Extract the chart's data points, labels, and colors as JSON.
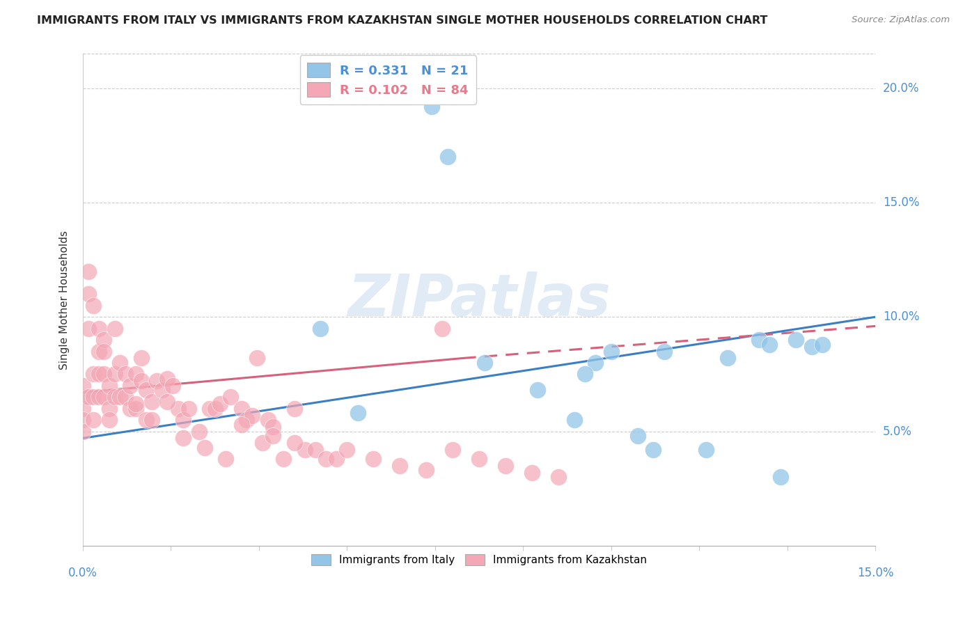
{
  "title": "IMMIGRANTS FROM ITALY VS IMMIGRANTS FROM KAZAKHSTAN SINGLE MOTHER HOUSEHOLDS CORRELATION CHART",
  "source": "Source: ZipAtlas.com",
  "ylabel": "Single Mother Households",
  "xlim": [
    0.0,
    0.15
  ],
  "ylim": [
    0.0,
    0.215
  ],
  "yticks": [
    0.05,
    0.1,
    0.15,
    0.2
  ],
  "ytick_labels": [
    "5.0%",
    "10.0%",
    "15.0%",
    "20.0%"
  ],
  "italy_color": "#92C5E8",
  "italy_edge": "#6aaed6",
  "kaz_color": "#F4A7B5",
  "kaz_edge": "#e87a8b",
  "italy_line_color": "#3A7EC6",
  "kaz_line_color": "#D9607A",
  "watermark_color": "#dce8f5",
  "legend_color_italy": "#4A90D9",
  "legend_color_kaz": "#E87A8B",
  "italy_x": [
    0.045,
    0.066,
    0.069,
    0.076,
    0.086,
    0.093,
    0.097,
    0.1,
    0.105,
    0.108,
    0.11,
    0.118,
    0.122,
    0.128,
    0.132,
    0.135,
    0.138,
    0.095,
    0.052,
    0.13,
    0.14
  ],
  "italy_y": [
    0.095,
    0.192,
    0.17,
    0.08,
    0.068,
    0.055,
    0.08,
    0.085,
    0.048,
    0.042,
    0.085,
    0.042,
    0.082,
    0.09,
    0.03,
    0.09,
    0.087,
    0.075,
    0.058,
    0.088,
    0.088
  ],
  "kaz_x": [
    0.0,
    0.0,
    0.0,
    0.0,
    0.0,
    0.001,
    0.001,
    0.001,
    0.001,
    0.002,
    0.002,
    0.002,
    0.002,
    0.003,
    0.003,
    0.003,
    0.003,
    0.004,
    0.004,
    0.004,
    0.004,
    0.005,
    0.005,
    0.005,
    0.006,
    0.006,
    0.006,
    0.007,
    0.007,
    0.008,
    0.008,
    0.009,
    0.009,
    0.01,
    0.01,
    0.011,
    0.011,
    0.012,
    0.012,
    0.013,
    0.014,
    0.015,
    0.016,
    0.017,
    0.018,
    0.019,
    0.02,
    0.022,
    0.024,
    0.025,
    0.026,
    0.028,
    0.03,
    0.031,
    0.032,
    0.033,
    0.034,
    0.035,
    0.036,
    0.038,
    0.04,
    0.042,
    0.044,
    0.046,
    0.048,
    0.05,
    0.055,
    0.06,
    0.065,
    0.068,
    0.07,
    0.075,
    0.08,
    0.085,
    0.09,
    0.01,
    0.013,
    0.016,
    0.019,
    0.023,
    0.027,
    0.03,
    0.036,
    0.04
  ],
  "kaz_y": [
    0.065,
    0.07,
    0.06,
    0.055,
    0.05,
    0.12,
    0.11,
    0.095,
    0.065,
    0.105,
    0.075,
    0.065,
    0.055,
    0.095,
    0.085,
    0.075,
    0.065,
    0.09,
    0.085,
    0.075,
    0.065,
    0.07,
    0.06,
    0.055,
    0.095,
    0.075,
    0.065,
    0.08,
    0.065,
    0.075,
    0.065,
    0.07,
    0.06,
    0.075,
    0.06,
    0.082,
    0.072,
    0.068,
    0.055,
    0.063,
    0.072,
    0.068,
    0.073,
    0.07,
    0.06,
    0.055,
    0.06,
    0.05,
    0.06,
    0.06,
    0.062,
    0.065,
    0.06,
    0.055,
    0.057,
    0.082,
    0.045,
    0.055,
    0.052,
    0.038,
    0.06,
    0.042,
    0.042,
    0.038,
    0.038,
    0.042,
    0.038,
    0.035,
    0.033,
    0.095,
    0.042,
    0.038,
    0.035,
    0.032,
    0.03,
    0.062,
    0.055,
    0.063,
    0.047,
    0.043,
    0.038,
    0.053,
    0.048,
    0.045
  ],
  "italy_line_x0": 0.0,
  "italy_line_y0": 0.047,
  "italy_line_x1": 0.15,
  "italy_line_y1": 0.1,
  "kaz_line_solid_x0": 0.0,
  "kaz_line_solid_y0": 0.067,
  "kaz_line_solid_x1": 0.072,
  "kaz_line_solid_y1": 0.082,
  "kaz_line_dash_x0": 0.072,
  "kaz_line_dash_y0": 0.082,
  "kaz_line_dash_x1": 0.15,
  "kaz_line_dash_y1": 0.096
}
